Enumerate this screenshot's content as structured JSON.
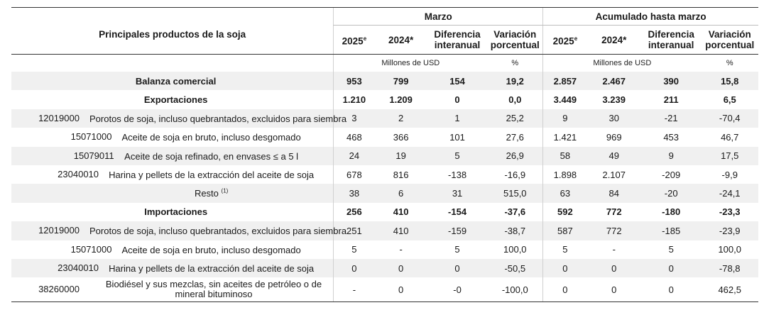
{
  "header": {
    "title": "Principales productos de la soja",
    "group_marzo": "Marzo",
    "group_acumulado": "Acumulado hasta marzo",
    "col_2025": "2025",
    "col_2025_sup": "e",
    "col_2024": "2024*",
    "col_diferencia": "Diferencia interanual",
    "col_variacion": "Variación porcentual"
  },
  "units": {
    "musd": "Millones de USD",
    "pct": "%"
  },
  "rows": [
    {
      "label": "Balanza comercial",
      "values": [
        "953",
        "799",
        "154",
        "19,2",
        "2.857",
        "2.467",
        "390",
        "15,8"
      ]
    },
    {
      "label": "Exportaciones",
      "values": [
        "1.210",
        "1.209",
        "0",
        "0,0",
        "3.449",
        "3.239",
        "211",
        "6,5"
      ]
    },
    {
      "code": "12019000",
      "label": "Porotos de soja, incluso quebrantados, excluidos para siembra",
      "values": [
        "3",
        "2",
        "1",
        "25,2",
        "9",
        "30",
        "-21",
        "-70,4"
      ]
    },
    {
      "code": "15071000",
      "label": "Aceite de soja en bruto, incluso desgomado",
      "values": [
        "468",
        "366",
        "101",
        "27,6",
        "1.421",
        "969",
        "453",
        "46,7"
      ]
    },
    {
      "code": "15079011",
      "label": "Aceite de soja refinado, en envases ≤ a 5 l",
      "values": [
        "24",
        "19",
        "5",
        "26,9",
        "58",
        "49",
        "9",
        "17,5"
      ]
    },
    {
      "code": "23040010",
      "label": "Harina y pellets de la extracción del aceite de soja",
      "values": [
        "678",
        "816",
        "-138",
        "-16,9",
        "1.898",
        "2.107",
        "-209",
        "-9,9"
      ]
    },
    {
      "label": "Resto",
      "sup": "(1)",
      "values": [
        "38",
        "6",
        "31",
        "515,0",
        "63",
        "84",
        "-20",
        "-24,1"
      ]
    },
    {
      "label": "Importaciones",
      "values": [
        "256",
        "410",
        "-154",
        "-37,6",
        "592",
        "772",
        "-180",
        "-23,3"
      ]
    },
    {
      "code": "12019000",
      "label": "Porotos de soja, incluso quebrantados, excluidos para siembra",
      "values": [
        "251",
        "410",
        "-159",
        "-38,7",
        "587",
        "772",
        "-185",
        "-23,9"
      ]
    },
    {
      "code": "15071000",
      "label": "Aceite de soja en bruto, incluso desgomado",
      "values": [
        "5",
        "-",
        "5",
        "100,0",
        "5",
        "-",
        "5",
        "100,0"
      ]
    },
    {
      "code": "23040010",
      "label": "Harina y pellets de la extracción del aceite de soja",
      "values": [
        "0",
        "0",
        "0",
        "-50,5",
        "0",
        "0",
        "0",
        "-78,8"
      ]
    },
    {
      "code": "38260000",
      "label": "Biodiésel y sus mezclas, sin aceites de petróleo o de mineral bituminoso",
      "values": [
        "-",
        "0",
        "-0",
        "-100,0",
        "0",
        "0",
        "0",
        "462,5"
      ]
    }
  ]
}
